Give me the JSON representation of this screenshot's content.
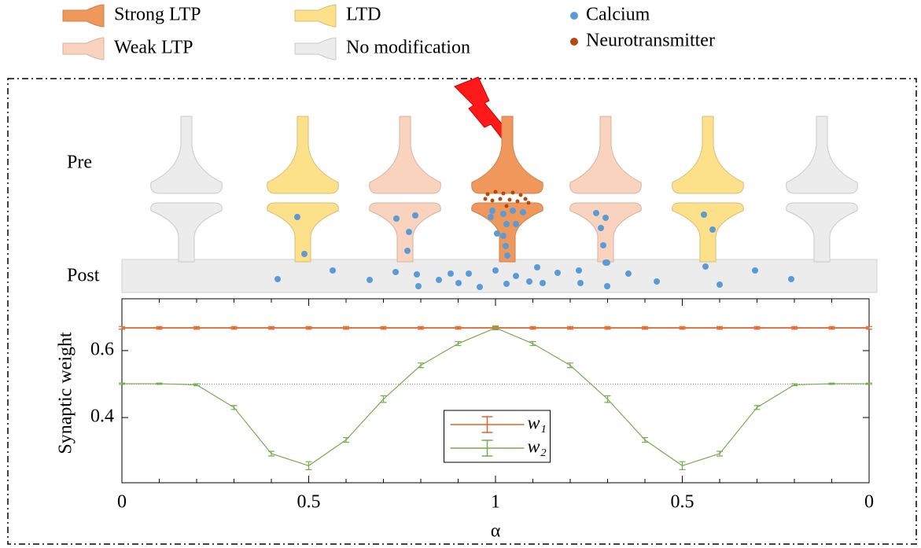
{
  "legend": [
    {
      "label": "Strong LTP",
      "color": "#f0985c"
    },
    {
      "label": "Weak LTP",
      "color": "#f9d3bd"
    },
    {
      "label": "LTD",
      "color": "#fde08a"
    },
    {
      "label": "No modification",
      "color": "#ececec"
    },
    {
      "label": "Calcium",
      "color": "#5b9bd5"
    },
    {
      "label": "Neurotransmitter",
      "color": "#b5470f"
    }
  ],
  "pre_label": "Pre",
  "post_label": "Post",
  "chart_data": {
    "type": "line",
    "ylabel": "Synaptic weight",
    "xlabel": "α",
    "categories": [
      "0",
      null,
      null,
      null,
      null,
      "0.5",
      null,
      null,
      null,
      null,
      "1",
      null,
      null,
      null,
      null,
      "0.5",
      null,
      null,
      null,
      null,
      "0"
    ],
    "ylim": [
      0.205,
      0.755
    ],
    "yticks": [
      0.4,
      0.6
    ],
    "reference_line": 0.5,
    "legend_position": "lower center",
    "series": [
      {
        "name": "w₁",
        "color": "#e0622b",
        "values": [
          0.668,
          0.668,
          0.668,
          0.668,
          0.668,
          0.668,
          0.668,
          0.668,
          0.668,
          0.668,
          0.668,
          0.668,
          0.668,
          0.668,
          0.668,
          0.668,
          0.668,
          0.668,
          0.668,
          0.668,
          0.668
        ],
        "errors": [
          0.004,
          0.004,
          0.004,
          0.004,
          0.004,
          0.004,
          0.004,
          0.004,
          0.004,
          0.004,
          0.004,
          0.004,
          0.004,
          0.004,
          0.004,
          0.004,
          0.004,
          0.004,
          0.004,
          0.004,
          0.004
        ]
      },
      {
        "name": "w₂",
        "color": "#77ac4f",
        "values": [
          0.501,
          0.501,
          0.498,
          0.43,
          0.292,
          0.256,
          0.333,
          0.455,
          0.556,
          0.621,
          0.668,
          0.621,
          0.556,
          0.455,
          0.333,
          0.256,
          0.292,
          0.43,
          0.498,
          0.501,
          0.501
        ],
        "errors": [
          0.002,
          0.002,
          0.003,
          0.006,
          0.007,
          0.012,
          0.007,
          0.01,
          0.007,
          0.006,
          0.006,
          0.006,
          0.007,
          0.01,
          0.007,
          0.012,
          0.007,
          0.006,
          0.003,
          0.002,
          0.002
        ]
      }
    ]
  }
}
